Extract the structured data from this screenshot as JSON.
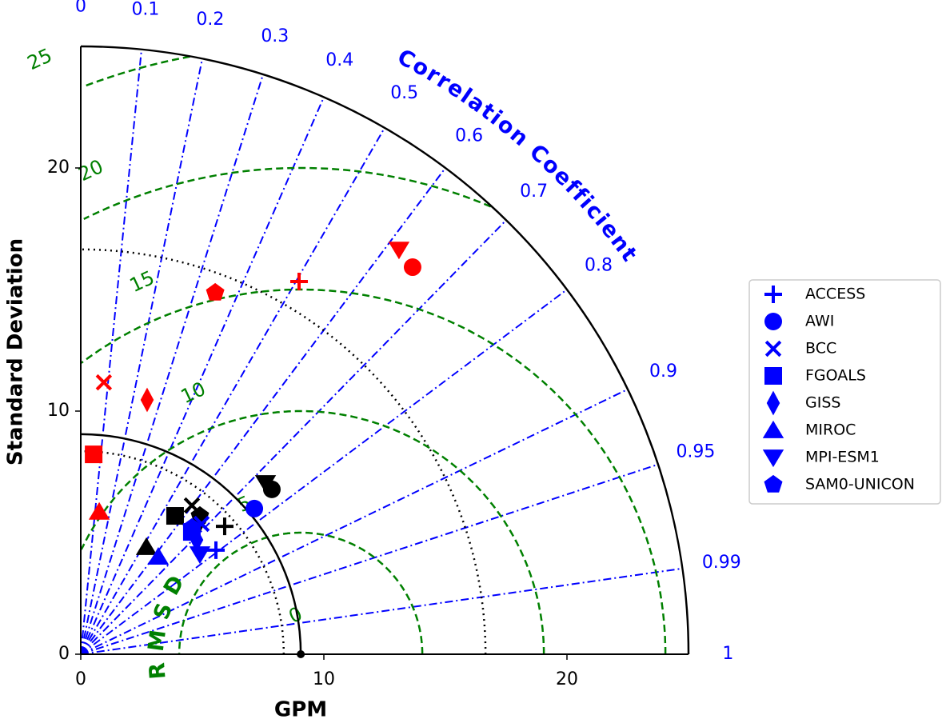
{
  "chart_data": {
    "type": "taylor",
    "title": "Correlation Coefficient",
    "xlabel": "GPM",
    "ylabel": "Standard Deviation",
    "rmsd_label": "RMSD",
    "xlim": [
      0,
      25
    ],
    "ylim": [
      0,
      25
    ],
    "xticks": [
      0,
      10,
      20
    ],
    "yticks": [
      0,
      10,
      20
    ],
    "corr_ticks": [
      0,
      0.1,
      0.2,
      0.3,
      0.4,
      0.5,
      0.6,
      0.7,
      0.8,
      0.9,
      0.95,
      0.99,
      1
    ],
    "corr_color": "#0000ff",
    "rmsd_ticks": [
      0,
      5,
      10,
      15,
      20,
      25
    ],
    "rmsd_color": "#008000",
    "std_contours": [
      8.35,
      16.65
    ],
    "ref_std": 9.05,
    "models": [
      "ACCESS",
      "AWI",
      "BCC",
      "FGOALS",
      "GISS",
      "MIROC",
      "MPI-ESM1",
      "SAM0-UNICON"
    ],
    "markers": [
      "plus",
      "circle",
      "x",
      "square",
      "diamond",
      "triangle-up",
      "triangle-down",
      "pentagon"
    ],
    "legend_color": "#0000ff",
    "legend_loc": "right",
    "series": [
      {
        "color": "#ff0000",
        "x": [
          8.98,
          13.65,
          0.95,
          0.53,
          2.73,
          0.76,
          13.09,
          5.53
        ],
        "y": [
          15.33,
          15.92,
          11.18,
          8.22,
          10.46,
          5.86,
          16.64,
          14.87
        ]
      },
      {
        "color": "#000000",
        "x": [
          5.92,
          7.86,
          4.57,
          3.88,
          4.9,
          2.7,
          7.6,
          4.9
        ],
        "y": [
          5.26,
          6.78,
          6.12,
          5.69,
          5.5,
          4.41,
          7.04,
          5.69
        ]
      },
      {
        "color": "#0000ff",
        "x": [
          5.56,
          7.14,
          4.97,
          4.57,
          4.77,
          3.19,
          4.9,
          4.57
        ],
        "y": [
          4.28,
          5.99,
          5.36,
          5.03,
          4.7,
          4.01,
          4.11,
          5.2
        ]
      }
    ]
  }
}
